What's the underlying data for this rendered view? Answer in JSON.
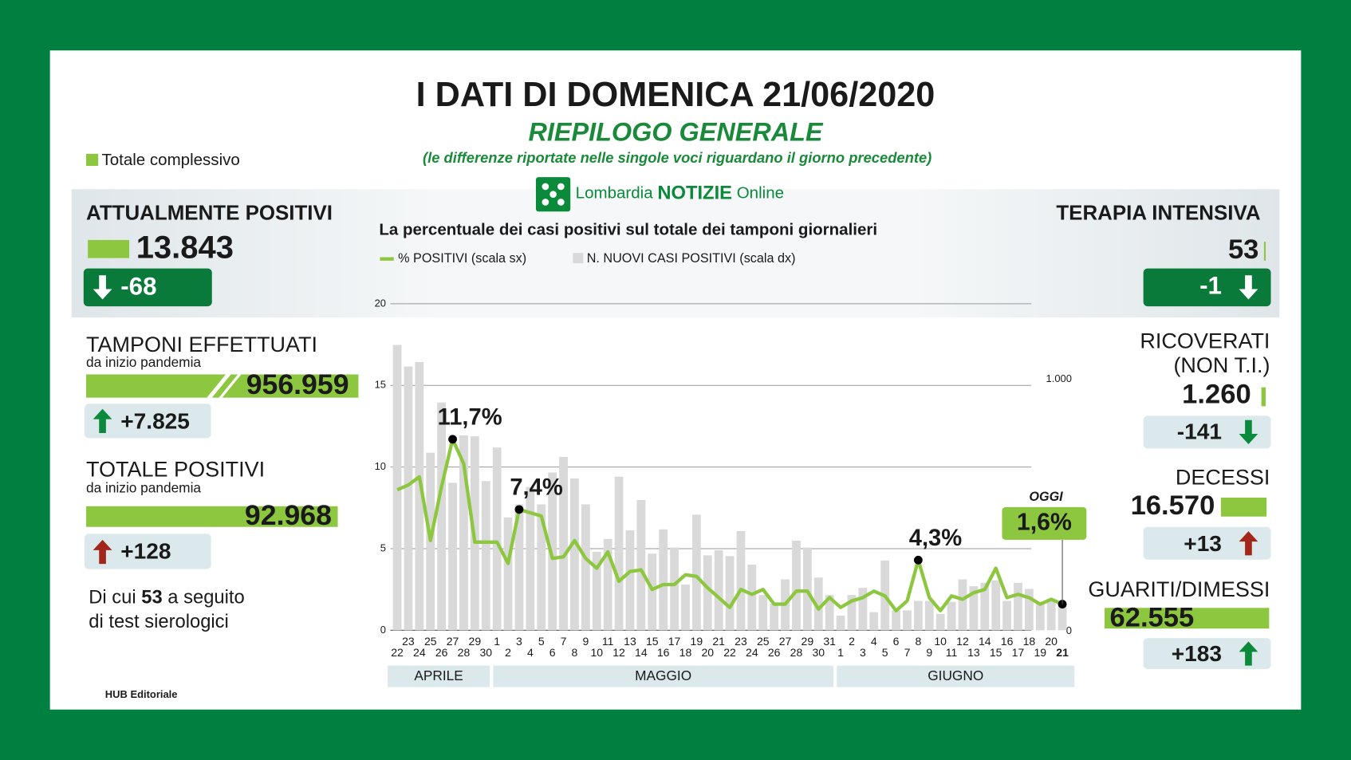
{
  "header": {
    "title": "I DATI DI DOMENICA 21/06/2020",
    "subtitle": "RIEPILOGO GENERALE",
    "note": "(le differenze riportate nelle singole voci riguardano il giorno precedente)",
    "legend_total": "Totale complessivo",
    "brand": {
      "name": "Lombardia",
      "highlight": "NOTIZIE",
      "suffix": "Online"
    }
  },
  "left": {
    "attualmente_positivi": {
      "title": "ATTUALMENTE POSITIVI",
      "value": "13.843",
      "delta": "-68"
    },
    "tamponi": {
      "title": "TAMPONI EFFETTUATI",
      "sub": "da inizio pandemia",
      "value": "956.959",
      "delta": "+7.825"
    },
    "totale_positivi": {
      "title": "TOTALE POSITIVI",
      "sub": "da inizio pandemia",
      "value": "92.968",
      "delta": "+128"
    },
    "serology": {
      "pre": "Di cui",
      "number": "53",
      "post": "a seguito",
      "line2": "di test sierologici"
    }
  },
  "right": {
    "terapia_intensiva": {
      "title": "TERAPIA INTENSIVA",
      "value": "53",
      "delta": "-1"
    },
    "ricoverati": {
      "title": "RICOVERATI",
      "title2": "(NON T.I.)",
      "value": "1.260",
      "delta": "-141"
    },
    "decessi": {
      "title": "DECESSI",
      "value": "16.570",
      "delta": "+13"
    },
    "guariti": {
      "title": "GUARITI/DIMESSI",
      "value": "62.555",
      "delta": "+183"
    }
  },
  "footer": "HUB Editoriale",
  "chart_data": {
    "type": "bar_line",
    "title": "La percentuale dei casi positivi sul totale dei tamponi giornalieri",
    "categories": [
      "22",
      "23",
      "24",
      "25",
      "26",
      "27",
      "28",
      "29",
      "30",
      "1",
      "2",
      "3",
      "4",
      "5",
      "6",
      "7",
      "8",
      "9",
      "10",
      "11",
      "12",
      "13",
      "14",
      "15",
      "16",
      "17",
      "18",
      "19",
      "20",
      "21",
      "22",
      "23",
      "24",
      "25",
      "26",
      "27",
      "28",
      "29",
      "30",
      "31",
      "1",
      "2",
      "3",
      "4",
      "5",
      "6",
      "7",
      "8",
      "9",
      "10",
      "11",
      "12",
      "13",
      "14",
      "15",
      "16",
      "17",
      "18",
      "19",
      "20",
      "21"
    ],
    "months": [
      "APRILE",
      "MAGGIO",
      "GIUGNO"
    ],
    "today_label": "OGGI",
    "series": [
      {
        "name": "% POSITIVI (scala sx)",
        "type": "line",
        "color": "#8dc63f",
        "values": [
          8.6,
          8.9,
          9.4,
          5.5,
          8.8,
          11.7,
          10.2,
          5.4,
          5.4,
          5.4,
          4.1,
          7.4,
          7.2,
          7.0,
          4.4,
          4.5,
          5.5,
          4.4,
          3.8,
          4.8,
          3.0,
          3.6,
          3.7,
          2.5,
          2.8,
          2.8,
          3.4,
          3.3,
          2.6,
          2.0,
          1.4,
          2.5,
          2.2,
          2.5,
          1.6,
          1.6,
          2.4,
          2.4,
          1.3,
          2.0,
          1.4,
          1.8,
          2.0,
          2.4,
          2.1,
          1.2,
          1.8,
          4.3,
          2.0,
          1.2,
          2.1,
          1.9,
          2.3,
          2.5,
          3.8,
          2.0,
          2.2,
          2.0,
          1.6,
          1.9,
          1.6
        ],
        "value_labels": [
          null,
          null,
          null,
          null,
          null,
          "11,7%",
          null,
          null,
          null,
          null,
          null,
          "7,4%",
          null,
          null,
          null,
          null,
          null,
          null,
          null,
          null,
          null,
          null,
          null,
          null,
          null,
          null,
          null,
          null,
          null,
          null,
          null,
          null,
          null,
          null,
          null,
          null,
          null,
          null,
          null,
          null,
          null,
          null,
          null,
          null,
          null,
          null,
          null,
          "4,3%",
          null,
          null,
          null,
          null,
          null,
          null,
          null,
          null,
          null,
          null,
          null,
          null,
          "1,6%"
        ]
      },
      {
        "name": "N. NUOVI CASI POSITIVI (scala dx)",
        "type": "bar",
        "color": "#d9d9d9",
        "axis": "y2",
        "values": [
          1165,
          1077,
          1095,
          725,
          930,
          602,
          796,
          792,
          609,
          746,
          461,
          514,
          585,
          514,
          644,
          708,
          620,
          514,
          320,
          373,
          627,
          408,
          532,
          313,
          412,
          338,
          187,
          472,
          306,
          327,
          303,
          405,
          268,
          144,
          109,
          208,
          366,
          338,
          215,
          144,
          60,
          144,
          173,
          74,
          285,
          81,
          81,
          120,
          120,
          67,
          116,
          208,
          180,
          194,
          204,
          120,
          194,
          169,
          109,
          127,
          99
        ]
      }
    ],
    "ylim": [
      0,
      20
    ],
    "yticks": [
      0,
      5,
      10,
      15,
      20
    ],
    "y2lim": [
      0,
      1333
    ],
    "y2ticks": [
      0,
      {
        "value": 1000,
        "label": "1.000"
      }
    ],
    "grid": true
  }
}
